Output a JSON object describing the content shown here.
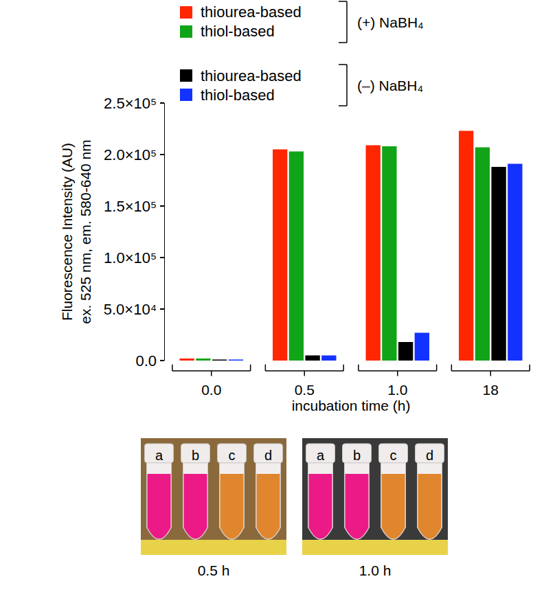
{
  "chart_data": {
    "type": "bar",
    "categories": [
      "0.0",
      "0.5",
      "1.0",
      "18"
    ],
    "xlabel": "incubation time (h)",
    "ylabel": [
      "Fluorescence Intensity (AU)",
      "ex. 525 nm, em. 580-640 nm"
    ],
    "ylim": [
      0,
      250000
    ],
    "yticks": [
      {
        "value": 0,
        "label": "0.0"
      },
      {
        "value": 50000,
        "label": "5.0×10⁴"
      },
      {
        "value": 100000,
        "label": "1.0×10⁵"
      },
      {
        "value": 150000,
        "label": "1.5×10⁵"
      },
      {
        "value": 200000,
        "label": "2.0×10⁵"
      },
      {
        "value": 250000,
        "label": "2.5×10⁵"
      }
    ],
    "grid": false,
    "legend": "top",
    "series": [
      {
        "name": "thiourea-based",
        "group": "(+) NaBH₄",
        "color": "#ff2600",
        "values": [
          2000,
          205000,
          209000,
          223000
        ]
      },
      {
        "name": "thiol-based",
        "group": "(+) NaBH₄",
        "color": "#12a418",
        "values": [
          2000,
          203000,
          208000,
          207000
        ]
      },
      {
        "name": "thiourea-based",
        "group": "(–) NaBH₄",
        "color": "#000000",
        "values": [
          1000,
          5000,
          18000,
          188000
        ]
      },
      {
        "name": "thiol-based",
        "group": "(–) NaBH₄",
        "color": "#1432ff",
        "values": [
          1000,
          5000,
          27000,
          191000
        ]
      }
    ]
  },
  "photos": [
    {
      "caption": "0.5 h",
      "tubes": [
        "a",
        "b",
        "c",
        "d"
      ],
      "colors": [
        "#ec1a86",
        "#ec1a86",
        "#e0862e",
        "#e0862e"
      ]
    },
    {
      "caption": "1.0 h",
      "tubes": [
        "a",
        "b",
        "c",
        "d"
      ],
      "colors": [
        "#ec1a86",
        "#ec1a86",
        "#e0862e",
        "#e0862e"
      ]
    }
  ]
}
